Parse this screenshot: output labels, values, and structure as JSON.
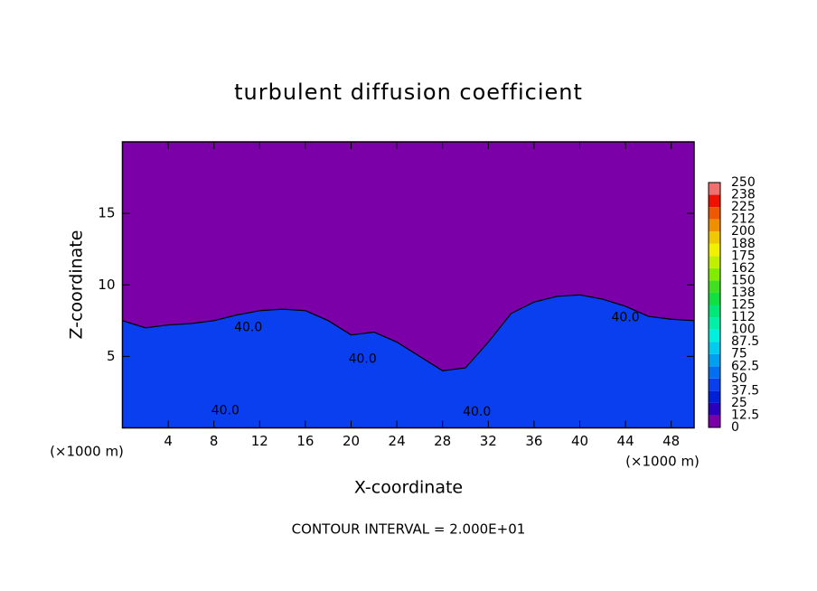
{
  "chart_data": {
    "type": "contour",
    "title": "turbulent diffusion coefficient",
    "xlabel": "X-coordinate",
    "ylabel": "Z-coordinate",
    "axis_unit": "(×1000 m)",
    "footer": "CONTOUR INTERVAL = 2.000E+01",
    "xlim": [
      0,
      50
    ],
    "ylim": [
      0,
      20
    ],
    "xticks": [
      4,
      8,
      12,
      16,
      20,
      24,
      28,
      32,
      36,
      40,
      44,
      48
    ],
    "yticks": [
      5,
      10,
      15
    ],
    "background_color": "#7b00a8",
    "layer": {
      "color": "#0a3ff0",
      "x": [
        0,
        2,
        4,
        6,
        8,
        10,
        12,
        14,
        16,
        18,
        20,
        22,
        24,
        26,
        28,
        30,
        32,
        34,
        36,
        38,
        40,
        42,
        44,
        46,
        48,
        50
      ],
      "z": [
        7.5,
        7.0,
        7.2,
        7.3,
        7.5,
        7.9,
        8.2,
        8.3,
        8.2,
        7.5,
        6.5,
        6.7,
        6.0,
        5.0,
        4.0,
        4.2,
        6.0,
        8.0,
        8.8,
        9.2,
        9.3,
        9.0,
        8.5,
        7.8,
        7.6,
        7.5
      ]
    },
    "contour": {
      "level": 40,
      "label": "40.0",
      "color": "#000000",
      "label_x": [
        11,
        21,
        9,
        31,
        44
      ],
      "label_z": [
        7.0,
        4.8,
        1.2,
        1.1,
        7.7
      ]
    },
    "colorbar": {
      "levels": [
        0,
        12.5,
        25,
        37.5,
        50,
        62.5,
        75,
        87.5,
        100,
        112,
        125,
        138,
        150,
        162,
        175,
        188,
        200,
        212,
        225,
        238,
        250
      ],
      "colors": [
        "#7b00a8",
        "#2a00c0",
        "#0020d8",
        "#0a3ff0",
        "#0070f0",
        "#00a0f0",
        "#00ccf0",
        "#00f0e0",
        "#00f0a8",
        "#00e878",
        "#10e040",
        "#40e020",
        "#80ec00",
        "#c0f000",
        "#f0f000",
        "#f0c800",
        "#f09000",
        "#f05800",
        "#f01000",
        "#f07070"
      ]
    }
  }
}
